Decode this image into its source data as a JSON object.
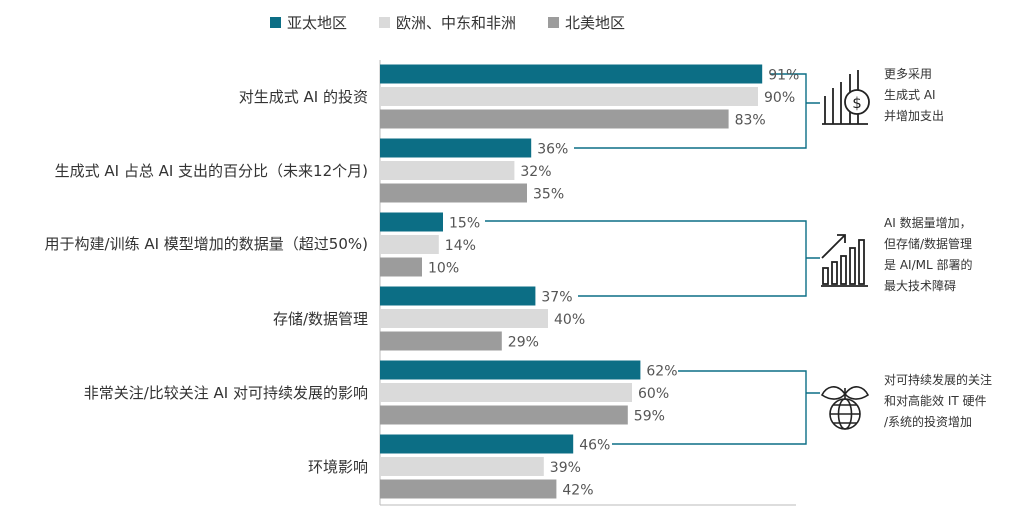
{
  "chart_data": {
    "type": "bar",
    "orientation": "horizontal",
    "categories": [
      "对生成式 AI 的投资",
      "生成式 AI 占总 AI 支出的百分比（未来12个月)",
      "用于构建/训练 AI 模型增加的数据量（超过50%)",
      "存储/数据管理",
      "非常关注/比较关注 AI 对可持续发展的影响",
      "环境影响"
    ],
    "series": [
      {
        "name": "亚太地区",
        "color": "#0c6e85",
        "values": [
          91,
          36,
          15,
          37,
          62,
          46
        ],
        "labels": [
          "91%",
          "36%",
          "15%",
          "37%",
          "62%",
          "46%"
        ]
      },
      {
        "name": "欧洲、中东和非洲",
        "color": "#dadada",
        "values": [
          90,
          32,
          14,
          40,
          60,
          39
        ],
        "labels": [
          "90%",
          "32%",
          "14%",
          "40%",
          "60%",
          "39%"
        ]
      },
      {
        "name": "北美地区",
        "color": "#9c9c9c",
        "values": [
          83,
          35,
          10,
          29,
          59,
          42
        ],
        "labels": [
          "83%",
          "35%",
          "10%",
          "29%",
          "59%",
          "42%"
        ]
      }
    ],
    "xlim": [
      0,
      100
    ],
    "legend_position": "top",
    "grid": false,
    "annotations": [
      {
        "icon": "dollar-growth-icon",
        "lines": [
          "更多采用",
          "生成式 AI",
          "并增加支出"
        ],
        "brackets": [
          0,
          1
        ]
      },
      {
        "icon": "growth-chart-icon",
        "lines": [
          "AI 数据量增加，",
          "但存储/数据管理",
          "是 AI/ML 部署的",
          "最大技术障碍"
        ],
        "brackets": [
          2,
          3
        ]
      },
      {
        "icon": "sustainable-globe-icon",
        "lines": [
          "对可持续发展的关注",
          "和对高能效 IT 硬件",
          "/系统的投资增加"
        ],
        "brackets": [
          4,
          5
        ]
      }
    ]
  }
}
